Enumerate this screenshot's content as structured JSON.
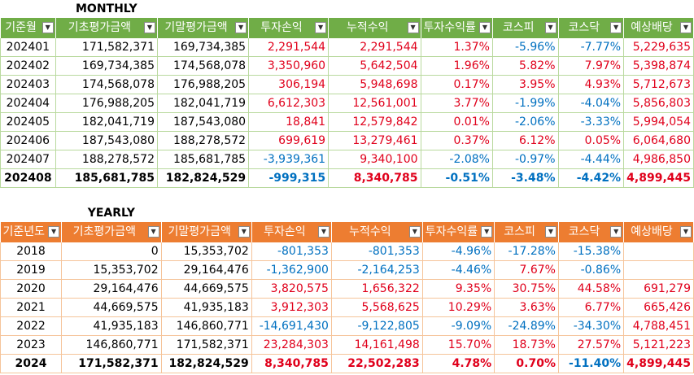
{
  "monthly": {
    "title": "MONTHLY",
    "headers": [
      "기준월",
      "기초평가금액",
      "기말평가금액",
      "투자손익",
      "누적수익",
      "투자수익률",
      "코스피",
      "코스닥",
      "예상배당"
    ],
    "rows": [
      [
        "202401",
        "171,582,371",
        "169,734,385",
        "2,291,544",
        "2,291,544",
        "1.37%",
        "-5.96%",
        "-7.77%",
        "5,229,635"
      ],
      [
        "202402",
        "169,734,385",
        "174,568,078",
        "3,350,960",
        "5,642,504",
        "1.96%",
        "5.82%",
        "7.97%",
        "5,398,874"
      ],
      [
        "202403",
        "174,568,078",
        "176,988,205",
        "306,194",
        "5,948,698",
        "0.17%",
        "3.95%",
        "4.93%",
        "5,712,673"
      ],
      [
        "202404",
        "176,988,205",
        "182,041,719",
        "6,612,303",
        "12,561,001",
        "3.77%",
        "-1.99%",
        "-4.04%",
        "5,856,803"
      ],
      [
        "202405",
        "182,041,719",
        "187,543,080",
        "18,841",
        "12,579,842",
        "0.01%",
        "-2.06%",
        "-3.33%",
        "5,994,054"
      ],
      [
        "202406",
        "187,543,080",
        "188,278,572",
        "699,619",
        "13,279,461",
        "0.37%",
        "6.12%",
        "0.05%",
        "6,064,680"
      ],
      [
        "202407",
        "188,278,572",
        "185,681,785",
        "-3,939,361",
        "9,340,100",
        "-2.08%",
        "-0.97%",
        "-4.44%",
        "4,986,850"
      ],
      [
        "202408",
        "185,681,785",
        "182,824,529",
        "-999,315",
        "8,340,785",
        "-0.51%",
        "-3.48%",
        "-4.42%",
        "4,899,445"
      ]
    ]
  },
  "yearly": {
    "title": "YEARLY",
    "headers": [
      "기준년도",
      "기초평가금액",
      "기말평가금액",
      "투자손익",
      "누적수익",
      "투자수익률",
      "코스피",
      "코스닥",
      "예상배당"
    ],
    "rows": [
      [
        "2018",
        "0",
        "15,353,702",
        "-801,353",
        "-801,353",
        "-4.96%",
        "-17.28%",
        "-15.38%",
        ""
      ],
      [
        "2019",
        "15,353,702",
        "29,164,476",
        "-1,362,900",
        "-2,164,253",
        "-4.46%",
        "7.67%",
        "-0.86%",
        ""
      ],
      [
        "2020",
        "29,164,476",
        "44,669,575",
        "3,820,575",
        "1,656,322",
        "9.35%",
        "30.75%",
        "44.58%",
        "691,279"
      ],
      [
        "2021",
        "44,669,575",
        "41,935,183",
        "3,912,303",
        "5,568,625",
        "10.29%",
        "3.63%",
        "6.77%",
        "665,426"
      ],
      [
        "2022",
        "41,935,183",
        "146,860,771",
        "-14,691,430",
        "-9,122,805",
        "-9.09%",
        "-24.89%",
        "-34.30%",
        "4,788,451"
      ],
      [
        "2023",
        "146,860,771",
        "171,582,371",
        "23,284,303",
        "14,161,498",
        "15.70%",
        "18.73%",
        "27.57%",
        "5,121,223"
      ],
      [
        "2024",
        "171,582,371",
        "182,824,529",
        "8,340,785",
        "22,502,283",
        "4.78%",
        "0.70%",
        "-11.40%",
        "4,899,445"
      ]
    ]
  },
  "colors": {
    "green_header": "#70ad47",
    "orange_header": "#ed7d31",
    "positive": "#e0001b",
    "negative": "#0070c0"
  },
  "icons": {
    "filter_dropdown": "dropdown-arrow-icon"
  }
}
